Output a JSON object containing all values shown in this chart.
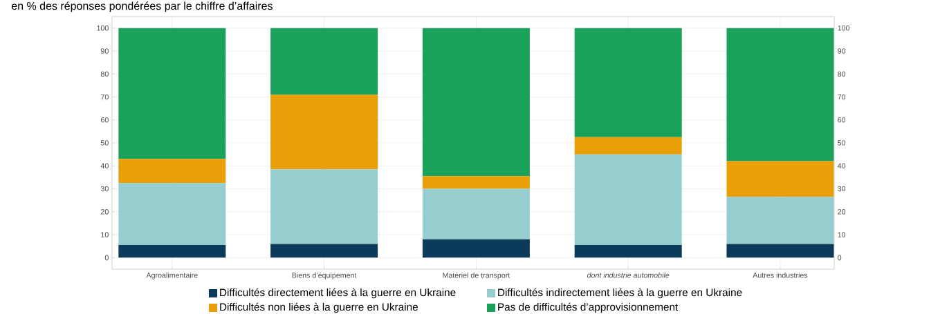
{
  "chart_data": {
    "type": "bar",
    "stacked": true,
    "subtitle": "en % des réponses pondérées par le chiffre d’affaires",
    "categories": [
      "Agroalimentaire",
      "Biens d’équipement",
      "Matériel de transport",
      "*dont industrie automobile*",
      "Autres industries"
    ],
    "series": [
      {
        "name": "Difficultés directement liées à la guerre en Ukraine",
        "color": "#0b3a5a",
        "values": [
          5.5,
          6,
          8,
          5.5,
          6
        ]
      },
      {
        "name": "Difficultés indirectement liées à la guerre en Ukraine",
        "color": "#96cdce",
        "values": [
          27,
          32.5,
          22,
          39.5,
          20.5
        ]
      },
      {
        "name": "Difficultés non liées à la guerre en Ukraine",
        "color": "#e89f08",
        "values": [
          10.5,
          32.5,
          5.5,
          7.5,
          15.5
        ]
      },
      {
        "name": "Pas de difficultés d’approvisionnement",
        "color": "#1ba25a",
        "values": [
          57,
          29,
          64.5,
          47.5,
          58
        ]
      }
    ],
    "ylim": [
      -5,
      105
    ],
    "yticks": [
      0,
      10,
      20,
      30,
      40,
      50,
      60,
      70,
      80,
      90,
      100
    ],
    "y2lim": [
      -5,
      105
    ],
    "y2ticks": [
      0,
      10,
      20,
      30,
      40,
      50,
      60,
      70,
      80,
      90,
      100
    ],
    "grid": true,
    "legend": "bottom"
  }
}
